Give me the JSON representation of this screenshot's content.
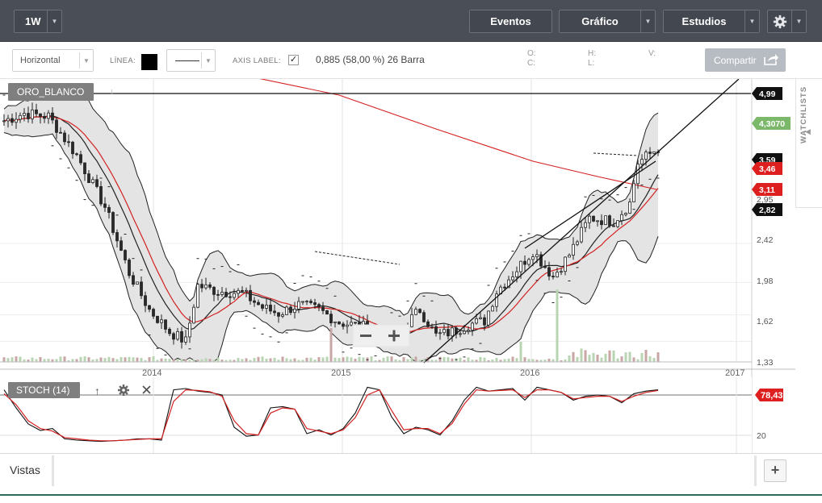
{
  "topbar": {
    "interval": "1W",
    "events_label": "Eventos",
    "chart_label": "Gráfico",
    "studies_label": "Estudios",
    "settings_icon": "gear-icon",
    "bg_color": "#4a4f57"
  },
  "toolbar": {
    "line_style_select": "Horizontal",
    "line_label": "LÍNEA:",
    "line_color": "#000000",
    "axis_label": "AXIS LABEL:",
    "axis_label_checked": "✓",
    "stat_text": "0,885 (58,00 %) 26 Barra",
    "o_label": "O:",
    "c_label": "C:",
    "h_label": "H:",
    "l_label": "L:",
    "v_label": "V:",
    "share_label": "Compartir"
  },
  "watchlists_label": "WATCHLISTS",
  "chart_data": {
    "type": "candlestick",
    "symbol_label": "ORO_BLANCO",
    "x_ticks": [
      "2014",
      "2015",
      "2016",
      "2017"
    ],
    "y_ticks": [
      "2,95",
      "2,42",
      "1,98",
      "1,62",
      "1,33"
    ],
    "ylim": [
      1.33,
      5.1
    ],
    "price_labels": [
      {
        "text": "4,99",
        "value": 4.99,
        "color": "#111111"
      },
      {
        "text": "4,3070",
        "value": 4.307,
        "color": "#7bb86a"
      },
      {
        "text": "3,59",
        "value": 3.59,
        "color": "#111111"
      },
      {
        "text": "3,46",
        "value": 3.46,
        "color": "#dd1f1f"
      },
      {
        "text": "3,11",
        "value": 3.11,
        "color": "#dd1f1f"
      },
      {
        "text": "2,82",
        "value": 2.82,
        "color": "#111111"
      }
    ],
    "horizontal_line_value": 4.99,
    "stoch": {
      "label": "STOCH (14)",
      "value_label": "78,43",
      "tick": "20",
      "ylim": [
        0,
        100
      ],
      "k": [
        88,
        60,
        35,
        25,
        28,
        12,
        10,
        9,
        8,
        9,
        10,
        12,
        12,
        10,
        88,
        90,
        86,
        84,
        80,
        30,
        16,
        18,
        60,
        62,
        58,
        20,
        26,
        18,
        28,
        52,
        92,
        88,
        46,
        20,
        30,
        26,
        18,
        40,
        72,
        92,
        86,
        88,
        90,
        72,
        92,
        88,
        84,
        72,
        78,
        80,
        78,
        68,
        82,
        86,
        88
      ],
      "d": [
        82,
        65,
        40,
        28,
        24,
        14,
        12,
        10,
        9,
        9,
        10,
        11,
        12,
        12,
        70,
        88,
        87,
        85,
        78,
        40,
        20,
        18,
        52,
        60,
        58,
        28,
        24,
        20,
        26,
        45,
        80,
        88,
        56,
        26,
        28,
        28,
        20,
        36,
        66,
        88,
        86,
        87,
        88,
        76,
        88,
        88,
        84,
        74,
        76,
        78,
        78,
        70,
        78,
        84,
        87
      ]
    }
  },
  "footer": {
    "views_label": "Vistas",
    "add_label": "+"
  }
}
